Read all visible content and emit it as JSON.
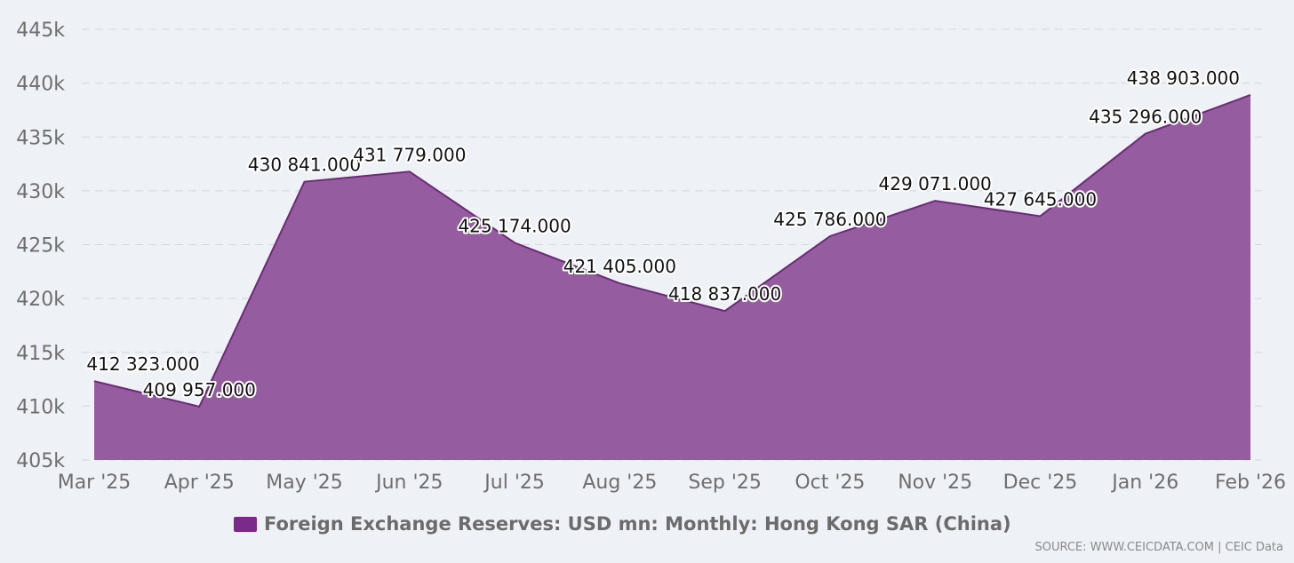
{
  "colors": {
    "series_fill": "#955c9f",
    "series_line": "#6e2a78",
    "legend_swatch": "#7b2a8a"
  },
  "legend": {
    "label": "Foreign Exchange Reserves: USD mn: Monthly: Hong Kong SAR (China)"
  },
  "source": "SOURCE: WWW.CEICDATA.COM | CEIC Data",
  "chart_data": {
    "type": "area",
    "categories": [
      "Mar '25",
      "Apr '25",
      "May '25",
      "Jun '25",
      "Jul '25",
      "Aug '25",
      "Sep '25",
      "Oct '25",
      "Nov '25",
      "Dec '25",
      "Jan '26",
      "Feb '26"
    ],
    "series": [
      {
        "name": "Foreign Exchange Reserves: USD mn: Monthly: Hong Kong SAR (China)",
        "values": [
          412323,
          409957,
          430841,
          431779,
          425174,
          421405,
          418837,
          425786,
          429071,
          427645,
          435296,
          438903
        ],
        "labels": [
          "412 323.000",
          "409 957.000",
          "430 841.000",
          "431 779.000",
          "425 174.000",
          "421 405.000",
          "418 837.000",
          "425 786.000",
          "429 071.000",
          "427 645.000",
          "435 296.000",
          "438 903.000"
        ]
      }
    ],
    "ylim": [
      405000,
      445000
    ],
    "yticks": [
      405000,
      410000,
      415000,
      420000,
      425000,
      430000,
      435000,
      440000,
      445000
    ],
    "ytick_labels": [
      "405k",
      "410k",
      "415k",
      "420k",
      "425k",
      "430k",
      "435k",
      "440k",
      "445k"
    ],
    "grid": true,
    "legend_position": "bottom"
  }
}
